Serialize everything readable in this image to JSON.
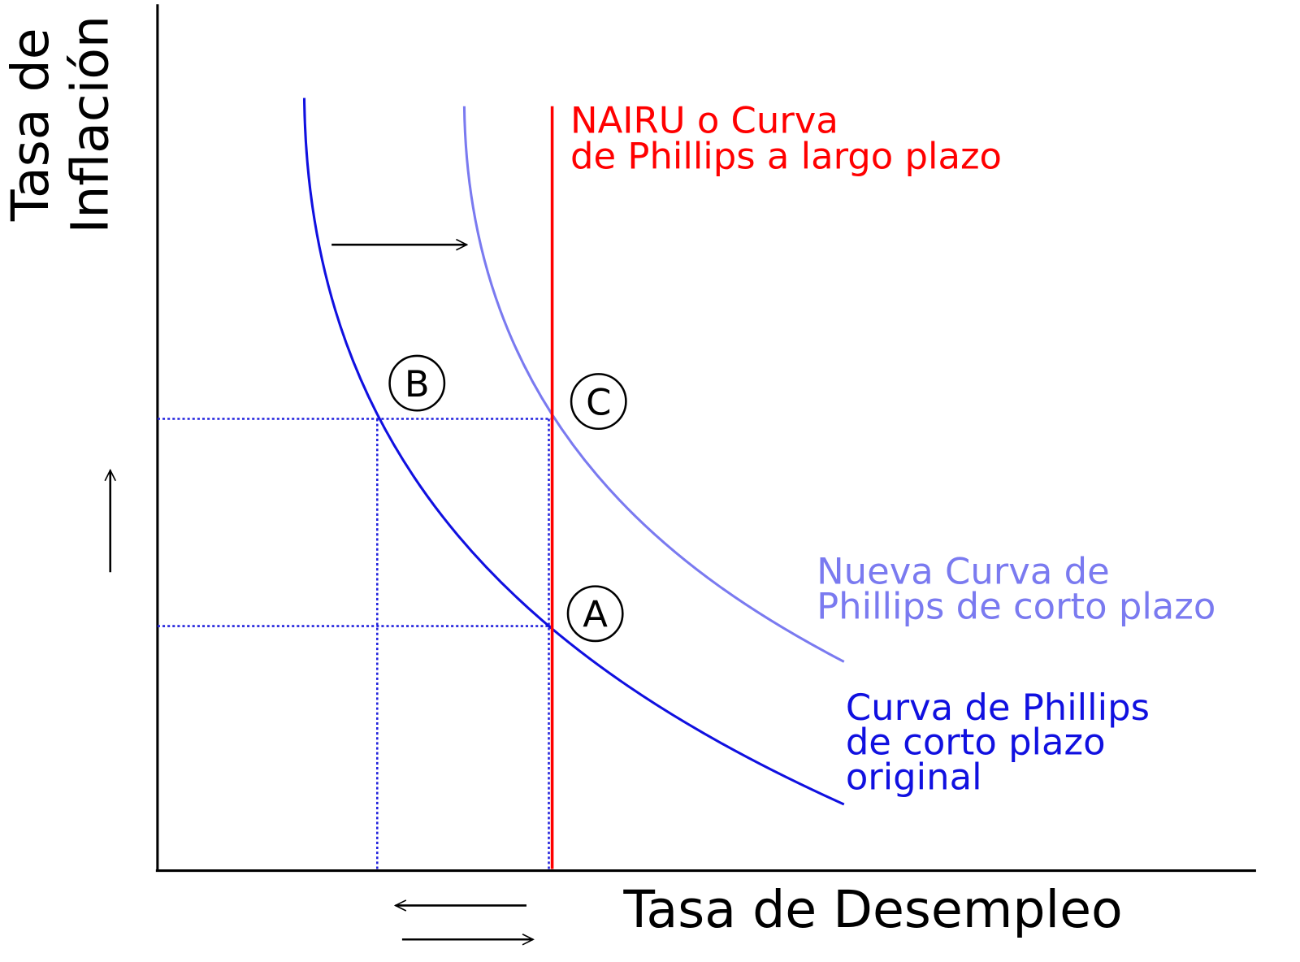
{
  "axes": {
    "y_label": [
      "Tasa de",
      "Inflación"
    ],
    "x_label": "Tasa de Desempleo"
  },
  "curves": {
    "nairu": [
      "NAIRU o Curva",
      "de Phillips a largo plazo"
    ],
    "new_short_run": [
      "Nueva Curva de",
      "Phillips de corto plazo"
    ],
    "original_short_run": [
      "Curva de Phillips",
      "de corto plazo",
      "original"
    ]
  },
  "points": [
    "A",
    "B",
    "C"
  ]
}
